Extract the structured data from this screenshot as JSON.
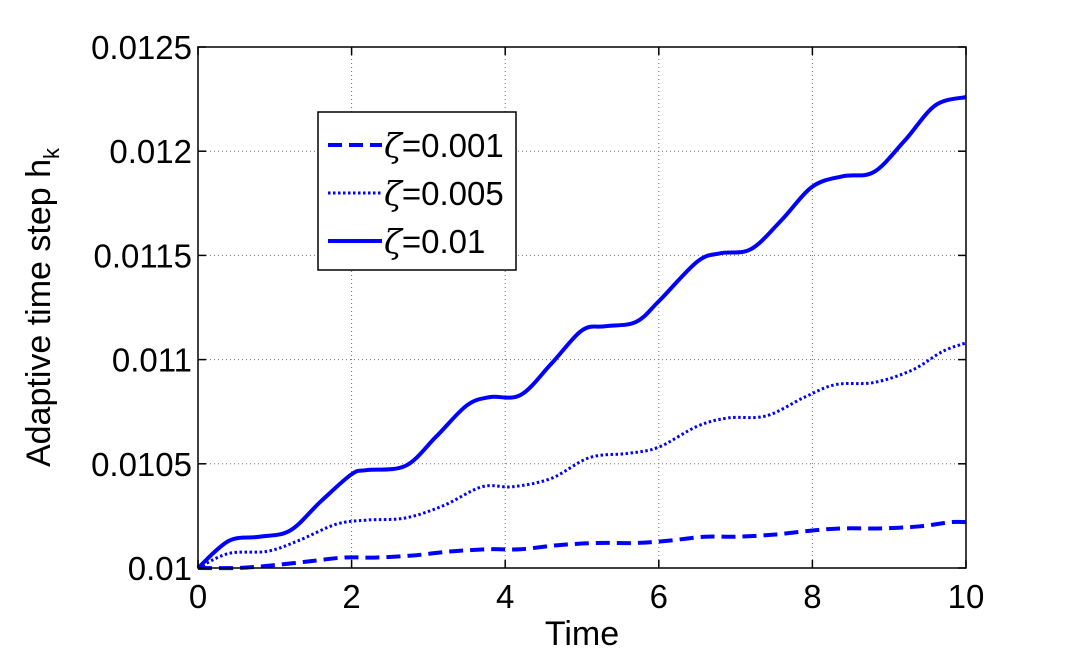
{
  "chart_data": {
    "type": "line",
    "title": "",
    "xlabel": "Time",
    "ylabel": {
      "base": "Adaptive time step h",
      "subscript": "k"
    },
    "xlim": [
      0,
      10
    ],
    "ylim": [
      0.01,
      0.0125
    ],
    "xticks": [
      0,
      2,
      4,
      6,
      8,
      10
    ],
    "xtick_labels": [
      "0",
      "2",
      "4",
      "6",
      "8",
      "10"
    ],
    "yticks": [
      0.01,
      0.0105,
      0.011,
      0.0115,
      0.012,
      0.0125
    ],
    "ytick_labels": [
      "0.01",
      "0.0105",
      "0.011",
      "0.0115",
      "0.012",
      "0.0125"
    ],
    "grid": true,
    "legend_position": "upper-left-inside",
    "series": [
      {
        "name": "ζ=0.001",
        "label_symbol": "ζ",
        "label_value": "=0.001",
        "style": "dashed",
        "color": "#0000ff",
        "x": [
          0,
          0.5,
          0.9,
          1.4,
          1.9,
          2.3,
          2.8,
          3.3,
          3.8,
          4.2,
          4.7,
          5.2,
          5.7,
          6.1,
          6.6,
          7.0,
          7.5,
          8.0,
          8.4,
          8.9,
          9.4,
          9.8,
          10
        ],
        "y": [
          0.01,
          0.01,
          0.01001,
          0.01003,
          0.01005,
          0.01005,
          0.01006,
          0.01008,
          0.01009,
          0.01009,
          0.01011,
          0.01012,
          0.01012,
          0.01013,
          0.01015,
          0.01015,
          0.01016,
          0.01018,
          0.01019,
          0.01019,
          0.0102,
          0.01022,
          0.01022
        ]
      },
      {
        "name": "ζ=0.005",
        "label_symbol": "ζ",
        "label_value": "=0.005",
        "style": "dotted",
        "color": "#0000ff",
        "x": [
          0,
          0.4,
          0.9,
          1.3,
          1.8,
          2.2,
          2.7,
          3.2,
          3.7,
          4.1,
          4.6,
          5.1,
          5.6,
          6.0,
          6.5,
          6.9,
          7.4,
          7.9,
          8.3,
          8.8,
          9.3,
          9.7,
          10
        ],
        "y": [
          0.01,
          0.01007,
          0.01008,
          0.01013,
          0.01021,
          0.01023,
          0.01024,
          0.0103,
          0.01039,
          0.01039,
          0.01043,
          0.01053,
          0.01055,
          0.01058,
          0.01068,
          0.01072,
          0.01073,
          0.01082,
          0.01088,
          0.01089,
          0.01095,
          0.01104,
          0.01108
        ]
      },
      {
        "name": "ζ=0.01",
        "label_symbol": "ζ",
        "label_value": "=0.01",
        "style": "solid",
        "color": "#0000ff",
        "x": [
          0,
          0.4,
          0.8,
          1.2,
          1.6,
          2.0,
          2.2,
          2.7,
          3.1,
          3.5,
          3.8,
          4.2,
          4.6,
          5.0,
          5.3,
          5.7,
          6.0,
          6.5,
          6.8,
          7.2,
          7.6,
          8.0,
          8.4,
          8.8,
          9.2,
          9.6,
          10
        ],
        "y": [
          0.01,
          0.01013,
          0.01015,
          0.01018,
          0.01032,
          0.01045,
          0.01047,
          0.01049,
          0.01063,
          0.01078,
          0.01082,
          0.01083,
          0.01098,
          0.01114,
          0.01116,
          0.01118,
          0.01128,
          0.01147,
          0.01151,
          0.01153,
          0.01167,
          0.01183,
          0.01188,
          0.0119,
          0.01205,
          0.01222,
          0.01226
        ]
      }
    ]
  },
  "colors": {
    "line": "#0000ff",
    "axis": "#000000",
    "grid": "#6e6e6e",
    "background": "#ffffff"
  }
}
